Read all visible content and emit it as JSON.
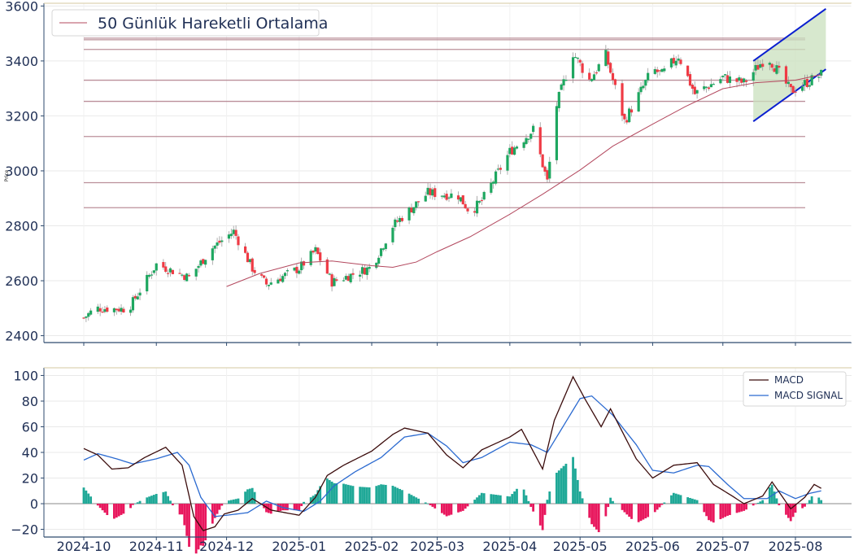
{
  "chart_data": [
    {
      "type": "candlestick",
      "ylabel": "Price",
      "ylim": [
        2375,
        3610
      ],
      "y_ticks": [
        "2400",
        "2600",
        "2800",
        "3000",
        "3200",
        "3400",
        "3600"
      ],
      "grid": true,
      "legend": {
        "placement": "top-left",
        "label": "50 Günlük Hareketli Ortalama"
      },
      "colors": {
        "up": "#1ea760",
        "down": "#ef3b45",
        "ma": "#b3485e",
        "level": "#b07d89",
        "channel": "#0a1fd0",
        "channel_fill": "#c9e0bd"
      },
      "horizontal_levels": [
        3483,
        3477,
        3442,
        3330,
        3253,
        3125,
        2957,
        2866
      ],
      "ma50": [
        {
          "d": "2024-12-01",
          "v": 2579
        },
        {
          "d": "2024-12-15",
          "v": 2626
        },
        {
          "d": "2025-01-01",
          "v": 2665
        },
        {
          "d": "2025-01-15",
          "v": 2672
        },
        {
          "d": "2025-02-01",
          "v": 2655
        },
        {
          "d": "2025-02-10",
          "v": 2649
        },
        {
          "d": "2025-02-20",
          "v": 2668
        },
        {
          "d": "2025-03-01",
          "v": 2706
        },
        {
          "d": "2025-03-15",
          "v": 2760
        },
        {
          "d": "2025-04-01",
          "v": 2842
        },
        {
          "d": "2025-04-15",
          "v": 2915
        },
        {
          "d": "2025-05-01",
          "v": 3003
        },
        {
          "d": "2025-05-15",
          "v": 3090
        },
        {
          "d": "2025-06-01",
          "v": 3170
        },
        {
          "d": "2025-06-15",
          "v": 3234
        },
        {
          "d": "2025-07-01",
          "v": 3299
        },
        {
          "d": "2025-07-15",
          "v": 3321
        },
        {
          "d": "2025-08-01",
          "v": 3330
        },
        {
          "d": "2025-08-12",
          "v": 3350
        }
      ],
      "channel": {
        "upper": [
          {
            "d": "2025-07-14",
            "v": 3400
          },
          {
            "d": "2025-08-14",
            "v": 3590
          }
        ],
        "lower": [
          {
            "d": "2025-07-14",
            "v": 3180
          },
          {
            "d": "2025-08-14",
            "v": 3370
          }
        ]
      },
      "close_anchors": [
        {
          "d": "2024-10-01",
          "v": 2465
        },
        {
          "d": "2024-10-06",
          "v": 2500
        },
        {
          "d": "2024-10-20",
          "v": 2497
        },
        {
          "d": "2024-11-01",
          "v": 2660
        },
        {
          "d": "2024-11-15",
          "v": 2612
        },
        {
          "d": "2024-11-25",
          "v": 2720
        },
        {
          "d": "2024-12-04",
          "v": 2780
        },
        {
          "d": "2024-12-12",
          "v": 2645
        },
        {
          "d": "2024-12-18",
          "v": 2587
        },
        {
          "d": "2025-01-01",
          "v": 2645
        },
        {
          "d": "2025-01-08",
          "v": 2710
        },
        {
          "d": "2025-01-15",
          "v": 2595
        },
        {
          "d": "2025-02-01",
          "v": 2650
        },
        {
          "d": "2025-02-10",
          "v": 2800
        },
        {
          "d": "2025-02-25",
          "v": 2920
        },
        {
          "d": "2025-03-10",
          "v": 2910
        },
        {
          "d": "2025-03-15",
          "v": 2850
        },
        {
          "d": "2025-03-20",
          "v": 2890
        },
        {
          "d": "2025-04-01",
          "v": 3070
        },
        {
          "d": "2025-04-11",
          "v": 3150
        },
        {
          "d": "2025-04-17",
          "v": 2960
        },
        {
          "d": "2025-04-21",
          "v": 3240
        },
        {
          "d": "2025-04-28",
          "v": 3430
        },
        {
          "d": "2025-05-05",
          "v": 3330
        },
        {
          "d": "2025-05-12",
          "v": 3420
        },
        {
          "d": "2025-05-20",
          "v": 3180
        },
        {
          "d": "2025-06-01",
          "v": 3370
        },
        {
          "d": "2025-06-05",
          "v": 3350
        },
        {
          "d": "2025-06-12",
          "v": 3420
        },
        {
          "d": "2025-06-19",
          "v": 3280
        },
        {
          "d": "2025-07-01",
          "v": 3340
        },
        {
          "d": "2025-07-10",
          "v": 3320
        },
        {
          "d": "2025-07-20",
          "v": 3420
        },
        {
          "d": "2025-07-30",
          "v": 3290
        },
        {
          "d": "2025-08-12",
          "v": 3350
        }
      ]
    },
    {
      "type": "macd",
      "ylim": [
        -26,
        106
      ],
      "y_ticks": [
        "100",
        "80",
        "60",
        "40",
        "20",
        "0",
        "−20"
      ],
      "grid": true,
      "legend": {
        "placement": "top-right",
        "series": [
          "MACD",
          "MACD SIGNAL"
        ]
      },
      "colors": {
        "macd": "#3b0c0c",
        "signal": "#2b6ad0",
        "hist_pos": "#1fa897",
        "hist_neg": "#e8175d"
      },
      "macd": [
        {
          "d": "2024-10-01",
          "v": 43
        },
        {
          "d": "2024-10-07",
          "v": 38
        },
        {
          "d": "2024-10-13",
          "v": 27
        },
        {
          "d": "2024-10-20",
          "v": 28
        },
        {
          "d": "2024-10-27",
          "v": 36
        },
        {
          "d": "2024-11-05",
          "v": 44
        },
        {
          "d": "2024-11-12",
          "v": 30
        },
        {
          "d": "2024-11-17",
          "v": -10
        },
        {
          "d": "2024-11-21",
          "v": -21
        },
        {
          "d": "2024-11-26",
          "v": -18
        },
        {
          "d": "2024-11-30",
          "v": -8
        },
        {
          "d": "2024-12-06",
          "v": -5
        },
        {
          "d": "2024-12-12",
          "v": 4
        },
        {
          "d": "2024-12-20",
          "v": -5
        },
        {
          "d": "2025-01-01",
          "v": -9
        },
        {
          "d": "2025-01-08",
          "v": 5
        },
        {
          "d": "2025-01-13",
          "v": 22
        },
        {
          "d": "2025-01-20",
          "v": 30
        },
        {
          "d": "2025-02-01",
          "v": 41
        },
        {
          "d": "2025-02-10",
          "v": 54
        },
        {
          "d": "2025-02-15",
          "v": 59
        },
        {
          "d": "2025-02-25",
          "v": 55
        },
        {
          "d": "2025-03-05",
          "v": 38
        },
        {
          "d": "2025-03-12",
          "v": 28
        },
        {
          "d": "2025-03-20",
          "v": 42
        },
        {
          "d": "2025-04-01",
          "v": 52
        },
        {
          "d": "2025-04-06",
          "v": 58
        },
        {
          "d": "2025-04-15",
          "v": 27
        },
        {
          "d": "2025-04-20",
          "v": 65
        },
        {
          "d": "2025-04-28",
          "v": 99
        },
        {
          "d": "2025-05-03",
          "v": 82
        },
        {
          "d": "2025-05-10",
          "v": 60
        },
        {
          "d": "2025-05-14",
          "v": 74
        },
        {
          "d": "2025-05-25",
          "v": 35
        },
        {
          "d": "2025-06-01",
          "v": 20
        },
        {
          "d": "2025-06-10",
          "v": 30
        },
        {
          "d": "2025-06-20",
          "v": 32
        },
        {
          "d": "2025-06-27",
          "v": 15
        },
        {
          "d": "2025-07-05",
          "v": 6
        },
        {
          "d": "2025-07-10",
          "v": 0
        },
        {
          "d": "2025-07-18",
          "v": 6
        },
        {
          "d": "2025-07-22",
          "v": 17
        },
        {
          "d": "2025-07-30",
          "v": -4
        },
        {
          "d": "2025-08-05",
          "v": 5
        },
        {
          "d": "2025-08-09",
          "v": 15
        },
        {
          "d": "2025-08-12",
          "v": 12
        }
      ],
      "signal": [
        {
          "d": "2024-10-01",
          "v": 34
        },
        {
          "d": "2024-10-07",
          "v": 39
        },
        {
          "d": "2024-10-15",
          "v": 35
        },
        {
          "d": "2024-10-22",
          "v": 31
        },
        {
          "d": "2024-11-01",
          "v": 35
        },
        {
          "d": "2024-11-10",
          "v": 40
        },
        {
          "d": "2024-11-15",
          "v": 30
        },
        {
          "d": "2024-11-20",
          "v": 5
        },
        {
          "d": "2024-11-26",
          "v": -10
        },
        {
          "d": "2024-12-01",
          "v": -9
        },
        {
          "d": "2024-12-10",
          "v": -7
        },
        {
          "d": "2024-12-18",
          "v": 2
        },
        {
          "d": "2024-12-25",
          "v": -3
        },
        {
          "d": "2025-01-03",
          "v": -6
        },
        {
          "d": "2025-01-10",
          "v": 2
        },
        {
          "d": "2025-01-16",
          "v": 14
        },
        {
          "d": "2025-01-25",
          "v": 25
        },
        {
          "d": "2025-02-05",
          "v": 36
        },
        {
          "d": "2025-02-15",
          "v": 52
        },
        {
          "d": "2025-02-25",
          "v": 55
        },
        {
          "d": "2025-03-05",
          "v": 45
        },
        {
          "d": "2025-03-12",
          "v": 32
        },
        {
          "d": "2025-03-20",
          "v": 36
        },
        {
          "d": "2025-04-01",
          "v": 48
        },
        {
          "d": "2025-04-10",
          "v": 46
        },
        {
          "d": "2025-04-17",
          "v": 40
        },
        {
          "d": "2025-04-24",
          "v": 61
        },
        {
          "d": "2025-05-01",
          "v": 82
        },
        {
          "d": "2025-05-06",
          "v": 84
        },
        {
          "d": "2025-05-15",
          "v": 69
        },
        {
          "d": "2025-05-25",
          "v": 46
        },
        {
          "d": "2025-06-01",
          "v": 26
        },
        {
          "d": "2025-06-10",
          "v": 24
        },
        {
          "d": "2025-06-20",
          "v": 30
        },
        {
          "d": "2025-06-25",
          "v": 29
        },
        {
          "d": "2025-07-03",
          "v": 15
        },
        {
          "d": "2025-07-10",
          "v": 4
        },
        {
          "d": "2025-07-20",
          "v": 4
        },
        {
          "d": "2025-07-25",
          "v": 10
        },
        {
          "d": "2025-08-01",
          "v": 4
        },
        {
          "d": "2025-08-07",
          "v": 8
        },
        {
          "d": "2025-08-12",
          "v": 10
        }
      ],
      "x_ticks": [
        "2024-10",
        "2024-11",
        "2024-12",
        "2025-01",
        "2025-02",
        "2025-03",
        "2025-04",
        "2025-05",
        "2025-06",
        "2025-07",
        "2025-08"
      ]
    }
  ]
}
